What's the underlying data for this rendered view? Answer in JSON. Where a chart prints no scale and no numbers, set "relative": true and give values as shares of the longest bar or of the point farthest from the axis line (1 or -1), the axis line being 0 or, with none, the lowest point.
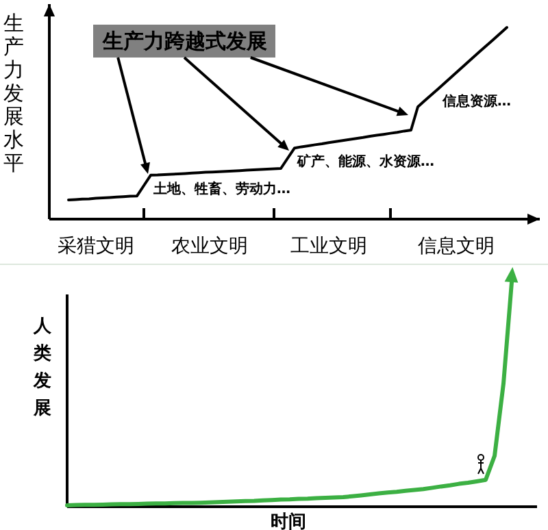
{
  "chart_data": [
    {
      "type": "line",
      "ylabel": "生产力发展水平",
      "relative": true,
      "categories": [
        null,
        null,
        null,
        null,
        null,
        null,
        null,
        null,
        null,
        null,
        null,
        null,
        null,
        null,
        null,
        null,
        null,
        null,
        null,
        null,
        null,
        null,
        null,
        null,
        null,
        null,
        null,
        null,
        null,
        null,
        null,
        null,
        null,
        null,
        null,
        null,
        null,
        null,
        null,
        null,
        null,
        null,
        null,
        null,
        null,
        null,
        null,
        null,
        null,
        null,
        null,
        null,
        null,
        null,
        null,
        null,
        null,
        null,
        null,
        null,
        null,
        null,
        null,
        null,
        null
      ],
      "annotations": [
        "生产力跨越式发展",
        "土地、牲畜、劳动力…",
        "矿产、能源、水资源…",
        "信息资源…",
        "采猎文明",
        "农业文明",
        "工业文明",
        "信息文明"
      ],
      "series": [
        {
          "color": "#000000",
          "values": [
            0.1,
            0.102,
            0.104,
            0.106,
            0.109,
            0.111,
            0.113,
            0.115,
            0.117,
            0.119,
            0.121,
            0.175,
            0.229,
            0.23,
            0.232,
            0.234,
            0.236,
            0.238,
            0.24,
            0.242,
            0.244,
            0.246,
            0.247,
            0.249,
            0.251,
            0.253,
            0.255,
            0.257,
            0.259,
            0.261,
            0.262,
            0.264,
            0.318,
            0.371,
            0.377,
            0.382,
            0.388,
            0.393,
            0.399,
            0.404,
            0.41,
            0.415,
            0.421,
            0.426,
            0.432,
            0.437,
            0.442,
            0.448,
            0.453,
            0.459,
            0.464,
            0.586,
            0.618,
            0.649,
            0.681,
            0.713,
            0.745,
            0.777,
            0.809,
            0.841,
            0.873,
            0.904,
            0.936,
            0.968,
            1
          ]
        }
      ]
    },
    {
      "type": "line",
      "ylabel": "人类发展",
      "xlabel": "时间",
      "relative": true,
      "categories": [
        null,
        null,
        null,
        null,
        null,
        null,
        null,
        null,
        null,
        null,
        null,
        null,
        null,
        null,
        null,
        null,
        null,
        null,
        null,
        null,
        null,
        null,
        null,
        null,
        null,
        null,
        null,
        null,
        null,
        null,
        null,
        null,
        null,
        null,
        null,
        null,
        null,
        null,
        null,
        null,
        null,
        null,
        null,
        null,
        null,
        null,
        null,
        null,
        null,
        null,
        null
      ],
      "series": [
        {
          "color": "#3cb043",
          "values": [
            0.006,
            0.007,
            0.008,
            0.008,
            0.009,
            0.01,
            0.011,
            0.011,
            0.012,
            0.013,
            0.014,
            0.014,
            0.015,
            0.016,
            0.016,
            0.017,
            0.018,
            0.02,
            0.021,
            0.023,
            0.024,
            0.025,
            0.027,
            0.029,
            0.031,
            0.032,
            0.034,
            0.035,
            0.037,
            0.038,
            0.04,
            0.041,
            0.045,
            0.049,
            0.053,
            0.057,
            0.061,
            0.064,
            0.068,
            0.072,
            0.076,
            0.081,
            0.087,
            0.092,
            0.098,
            0.103,
            0.109,
            0.115,
            0.218,
            0.529,
            1
          ]
        }
      ]
    }
  ]
}
